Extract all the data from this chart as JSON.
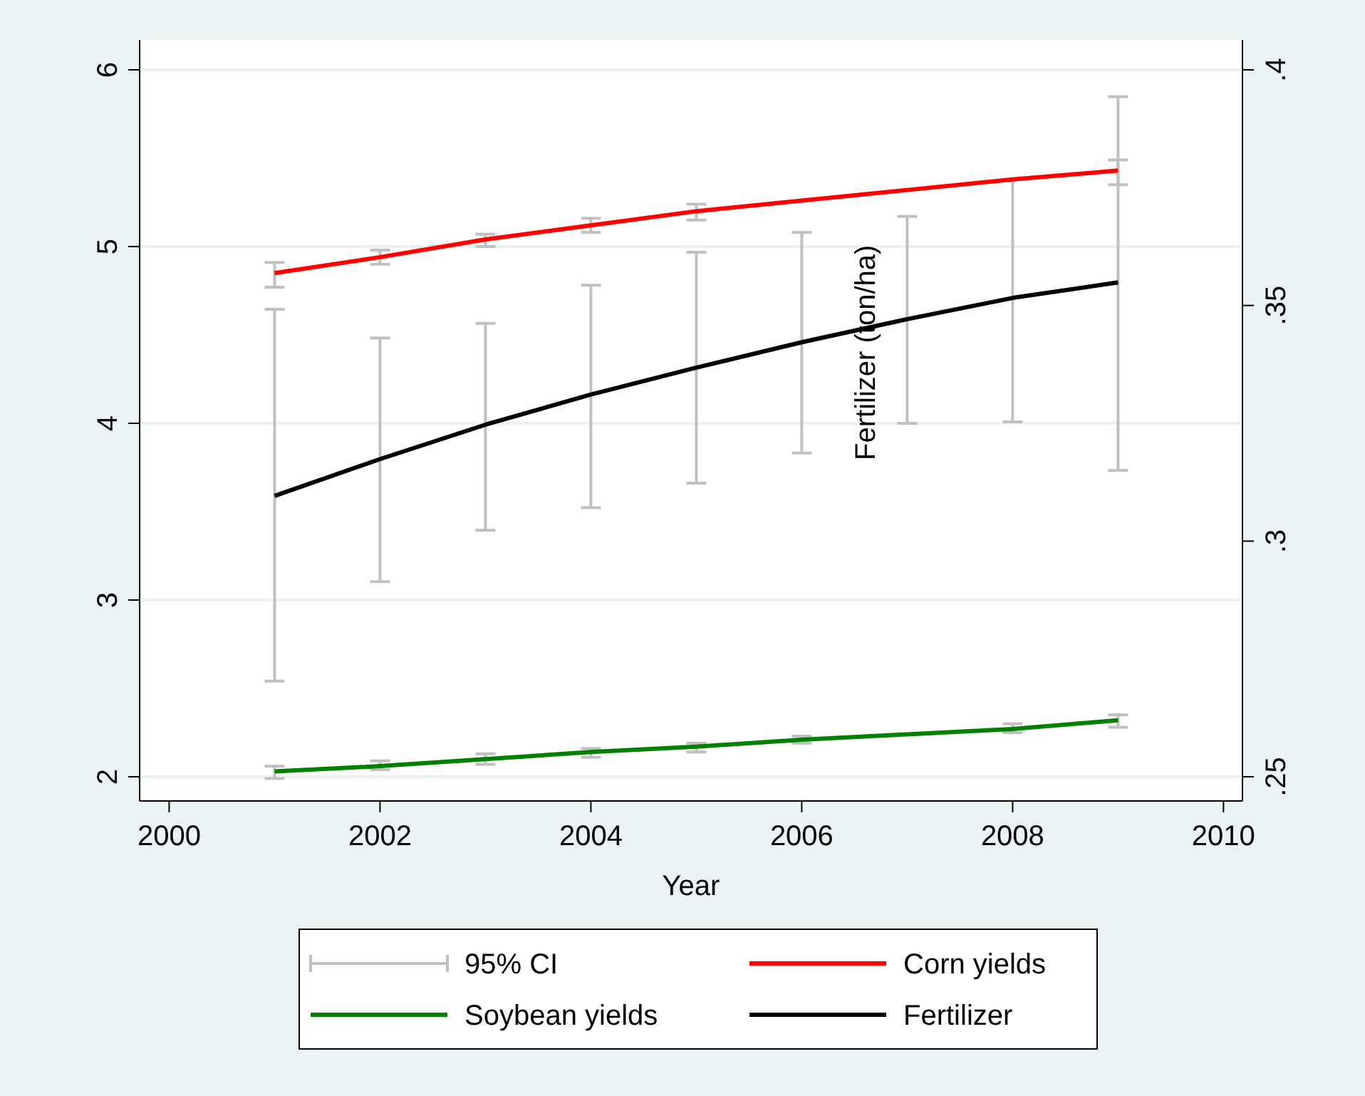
{
  "chart_data": {
    "type": "line",
    "xlabel": "Year",
    "y2label": "Fertilizer (ton/ha)",
    "x": [
      2001,
      2002,
      2003,
      2004,
      2005,
      2006,
      2007,
      2008,
      2009
    ],
    "xlim": [
      1999.72,
      2010.18
    ],
    "xticks": [
      2000,
      2002,
      2004,
      2006,
      2008,
      2010
    ],
    "ylim": [
      2,
      6
    ],
    "yticks": [
      2,
      3,
      4,
      5,
      6
    ],
    "y2lim": [
      0.25,
      0.4
    ],
    "y2ticks": [
      {
        "value": 0.25,
        "label": ".25"
      },
      {
        "value": 0.3,
        "label": ".3"
      },
      {
        "value": 0.35,
        "label": ".35"
      },
      {
        "value": 0.4,
        "label": ".4"
      }
    ],
    "grid": "y",
    "legend": "bottom",
    "marker": "none",
    "line_style": "solid",
    "annotations": [
      "95% CI"
    ],
    "series": [
      {
        "name": "Corn yields",
        "color": "#ff0000",
        "values": [
          4.85,
          4.94,
          5.04,
          5.12,
          5.2,
          5.26,
          5.32,
          5.38,
          5.43
        ],
        "errors": [
          [
            4.77,
            4.91
          ],
          [
            4.9,
            4.98
          ],
          [
            5.0,
            5.07
          ],
          [
            5.08,
            5.16
          ],
          [
            5.15,
            5.24
          ],
          null,
          null,
          null,
          [
            5.35,
            5.49
          ]
        ]
      },
      {
        "name": "Soybean yields",
        "color": "#008000",
        "values": [
          2.03,
          2.06,
          2.1,
          2.14,
          2.17,
          2.21,
          2.24,
          2.27,
          2.32
        ],
        "errors": [
          [
            1.99,
            2.06
          ],
          [
            2.04,
            2.09
          ],
          [
            2.07,
            2.13
          ],
          [
            2.11,
            2.16
          ],
          [
            2.14,
            2.19
          ],
          [
            2.19,
            2.23
          ],
          null,
          [
            2.25,
            2.3
          ],
          [
            2.28,
            2.35
          ]
        ]
      },
      {
        "name": "Fertilizer",
        "color": "#000000",
        "axis": "y2",
        "values": [
          0.3096,
          0.3174,
          0.3247,
          0.3311,
          0.3368,
          0.3422,
          0.3471,
          0.3516,
          0.3549
        ],
        "errors": [
          [
            0.2703,
            0.3492
          ],
          [
            0.2914,
            0.3431
          ],
          [
            0.3023,
            0.3462
          ],
          [
            0.3071,
            0.3543
          ],
          [
            0.3123,
            0.3613
          ],
          [
            0.3187,
            0.3655
          ],
          [
            0.325,
            0.3689
          ],
          [
            0.3253,
            0.3767
          ],
          [
            0.315,
            0.3943
          ]
        ]
      }
    ]
  }
}
